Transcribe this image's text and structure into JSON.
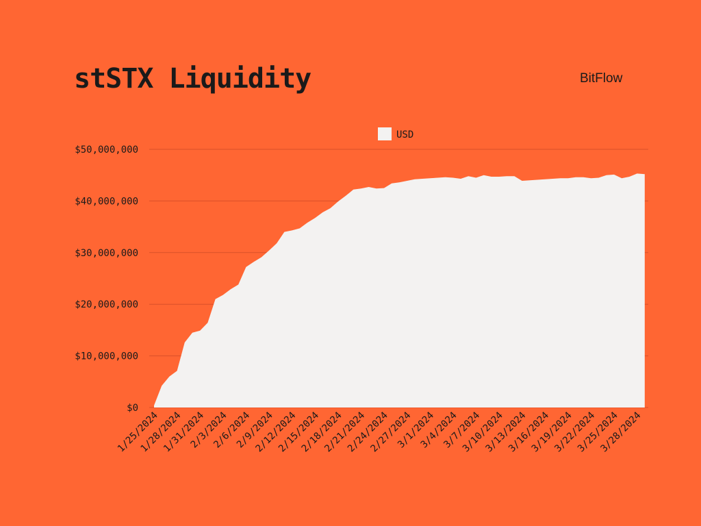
{
  "header": {
    "title": "stSTX Liquidity",
    "brand": "BitFlow"
  },
  "colors": {
    "background": "#FF6633",
    "area_fill": "#F3F2F1",
    "gridline": "#D9502A"
  },
  "chart_data": {
    "type": "area",
    "title": "stSTX Liquidity",
    "xlabel": "",
    "ylabel": "",
    "legend": {
      "position": "top-center",
      "entries": [
        "USD"
      ]
    },
    "grid": true,
    "ylim": [
      0,
      50000000
    ],
    "y_ticks": [
      0,
      10000000,
      20000000,
      30000000,
      40000000,
      50000000
    ],
    "y_tick_labels": [
      "$0",
      "$10,000,000",
      "$20,000,000",
      "$30,000,000",
      "$40,000,000",
      "$50,000,000"
    ],
    "x_tick_labels": [
      "1/25/2024",
      "1/28/2024",
      "1/31/2024",
      "2/3/2024",
      "2/6/2024",
      "2/9/2024",
      "2/12/2024",
      "2/15/2024",
      "2/18/2024",
      "2/21/2024",
      "2/24/2024",
      "2/27/2024",
      "3/1/2024",
      "3/4/2024",
      "3/7/2024",
      "3/10/2024",
      "3/13/2024",
      "3/16/2024",
      "3/19/2024",
      "3/22/2024",
      "3/25/2024",
      "3/28/2024"
    ],
    "x_start": "2024-01-25",
    "x_end": "2024-03-29",
    "series": [
      {
        "name": "USD",
        "values": [
          400000,
          4200000,
          6000000,
          7100000,
          12600000,
          14500000,
          14900000,
          16400000,
          21000000,
          21800000,
          22900000,
          23800000,
          27200000,
          28200000,
          29100000,
          30400000,
          31800000,
          34000000,
          34300000,
          34700000,
          35800000,
          36700000,
          37800000,
          38600000,
          39900000,
          41000000,
          42200000,
          42400000,
          42700000,
          42400000,
          42500000,
          43400000,
          43600000,
          43900000,
          44200000,
          44300000,
          44400000,
          44500000,
          44600000,
          44500000,
          44300000,
          44800000,
          44500000,
          45000000,
          44700000,
          44700000,
          44800000,
          44800000,
          43900000,
          44000000,
          44100000,
          44200000,
          44300000,
          44400000,
          44400000,
          44600000,
          44600000,
          44400000,
          44500000,
          45000000,
          45100000,
          44400000,
          44700000,
          45300000,
          45200000
        ]
      }
    ]
  }
}
